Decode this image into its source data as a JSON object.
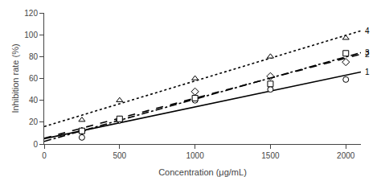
{
  "chart_data": {
    "type": "scatter",
    "title": "",
    "xlabel": "Concentration (μg/mL)",
    "ylabel": "Inhibition rate (%)",
    "xlim": [
      0,
      2100
    ],
    "ylim": [
      0,
      120
    ],
    "xticks": [
      0,
      500,
      1000,
      1500,
      2000
    ],
    "yticks": [
      0,
      20,
      40,
      60,
      80,
      100,
      120
    ],
    "grid": false,
    "series": [
      {
        "name": "1",
        "color": "#000000",
        "marker": "circle",
        "line_style": "solid",
        "x": [
          250,
          500,
          1000,
          1500,
          2000
        ],
        "values": [
          6,
          22,
          40,
          50,
          59
        ],
        "fit": {
          "x": [
            0,
            2100
          ],
          "values": [
            4.8476,
            65.9524
          ]
        }
      },
      {
        "name": "2",
        "color": "#000000",
        "marker": "diamond",
        "line_style": "dash",
        "x": [
          250,
          500,
          1000,
          1500,
          2000
        ],
        "values": [
          12,
          22,
          48,
          62,
          75
        ],
        "fit": {
          "x": [
            0,
            2100
          ],
          "values": [
            5.3598,
            82.2402
          ]
        }
      },
      {
        "name": "3",
        "color": "#000000",
        "marker": "square",
        "line_style": "dashdot",
        "x": [
          250,
          500,
          1000,
          1500,
          2000
        ],
        "values": [
          12,
          23,
          42,
          55,
          83
        ],
        "fit": {
          "x": [
            0,
            2100
          ],
          "values": [
            2.4085,
            83.5915
          ]
        }
      },
      {
        "name": "4",
        "color": "#000000",
        "marker": "triangle-up",
        "line_style": "dot",
        "x": [
          250,
          500,
          1000,
          1500,
          2000
        ],
        "values": [
          22,
          40,
          60,
          80,
          97
        ],
        "fit": {
          "x": [
            0,
            2100
          ],
          "values": [
            15.9817,
            103.6183
          ]
        }
      }
    ]
  }
}
